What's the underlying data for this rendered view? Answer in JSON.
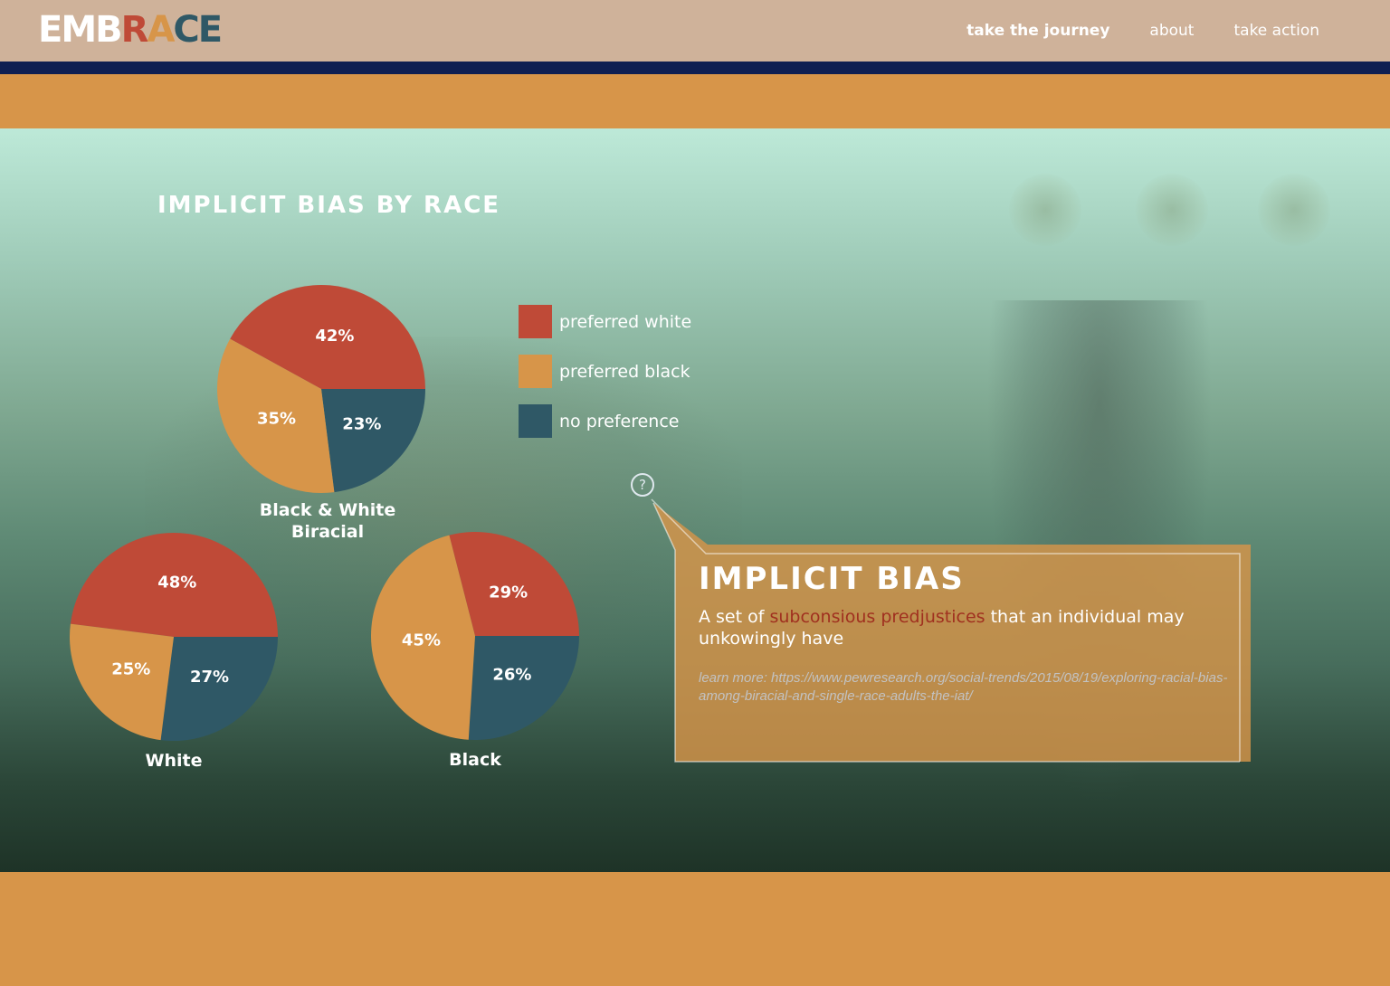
{
  "header": {
    "logo_letters": [
      {
        "char": "E",
        "color": "#ffffff"
      },
      {
        "char": "M",
        "color": "#ffffff"
      },
      {
        "char": "B",
        "color": "#ffffff"
      },
      {
        "char": "R",
        "color": "#bf4a37"
      },
      {
        "char": "A",
        "color": "#d79549"
      },
      {
        "char": "C",
        "color": "#2f5866"
      },
      {
        "char": "E",
        "color": "#2f5866"
      }
    ],
    "nav": [
      {
        "label": "take the journey",
        "active": true
      },
      {
        "label": "about",
        "active": false
      },
      {
        "label": "take action",
        "active": false
      }
    ]
  },
  "colors": {
    "preferred_white": "#bf4a37",
    "preferred_black": "#d79549",
    "no_preference": "#2f5866",
    "navy": "#0f1f52",
    "orange": "#d79549"
  },
  "chart": {
    "title": "IMPLICIT BIAS BY RACE",
    "legend": [
      {
        "label": "preferred white",
        "color": "#bf4a37"
      },
      {
        "label": "preferred black",
        "color": "#d79549"
      },
      {
        "label": "no preference",
        "color": "#2f5866"
      }
    ]
  },
  "chart_data": [
    {
      "type": "pie",
      "title": "Black & White Biracial",
      "labels": [
        "preferred white",
        "no preference",
        "preferred black"
      ],
      "values": [
        42,
        23,
        35
      ]
    },
    {
      "type": "pie",
      "title": "White",
      "labels": [
        "preferred white",
        "no preference",
        "preferred black"
      ],
      "values": [
        48,
        27,
        25
      ]
    },
    {
      "type": "pie",
      "title": "Black",
      "labels": [
        "preferred white",
        "no preference",
        "preferred black"
      ],
      "values": [
        29,
        26,
        45
      ]
    }
  ],
  "callout": {
    "help_icon": "?",
    "title": "IMPLICIT BIAS",
    "desc_prefix": "A set of ",
    "desc_highlight": "subconsious predjustices",
    "desc_suffix": " that an individual may unkowingly have",
    "link_text": "learn more: https://www.pewresearch.org/social-trends/2015/08/19/exploring-racial-bias-among-biracial-and-single-race-adults-the-iat/"
  }
}
